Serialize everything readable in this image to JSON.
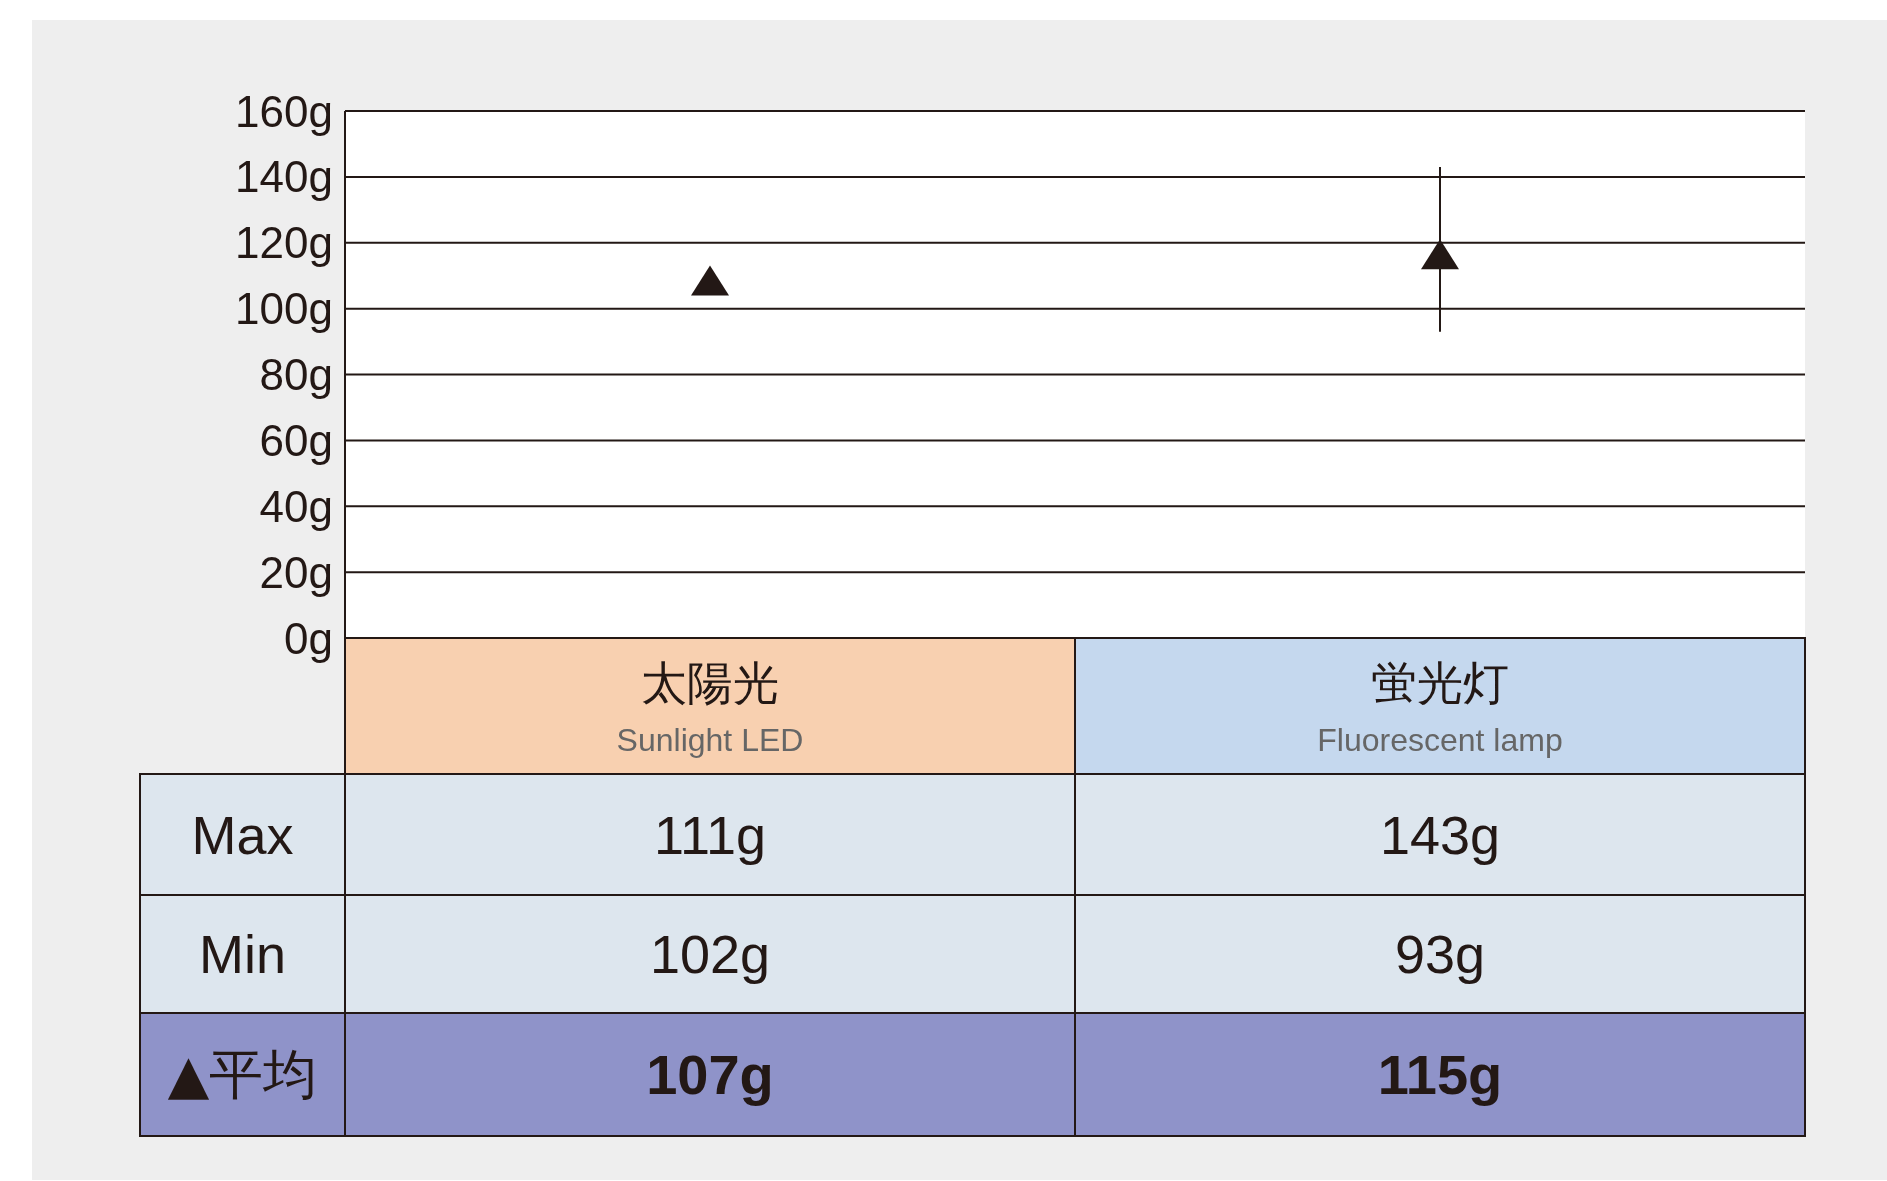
{
  "chart_data": {
    "type": "scatter",
    "categories": [
      "太陽光\nSunlight LED",
      "蛍光灯\nFluorescent lamp"
    ],
    "series": [
      {
        "name": "▲平均",
        "color": "#231815",
        "values": [
          107,
          115
        ],
        "errors": [
          null,
          [
            93,
            143
          ]
        ],
        "value_labels": [
          "107g",
          "115g"
        ]
      }
    ],
    "marker": "triangle",
    "grid": "y",
    "ylim": [
      0,
      160
    ],
    "yticks": [
      {
        "value": 0,
        "label": "0g"
      },
      {
        "value": 20,
        "label": "20g"
      },
      {
        "value": 40,
        "label": "40g"
      },
      {
        "value": 60,
        "label": "60g"
      },
      {
        "value": 80,
        "label": "80g"
      },
      {
        "value": 100,
        "label": "100g"
      },
      {
        "value": 120,
        "label": "120g"
      },
      {
        "value": 140,
        "label": "140g"
      },
      {
        "value": 160,
        "label": "160g"
      }
    ],
    "annotations": [
      "Max",
      "111g",
      "143g",
      "Min",
      "102g",
      "93g"
    ]
  }
}
